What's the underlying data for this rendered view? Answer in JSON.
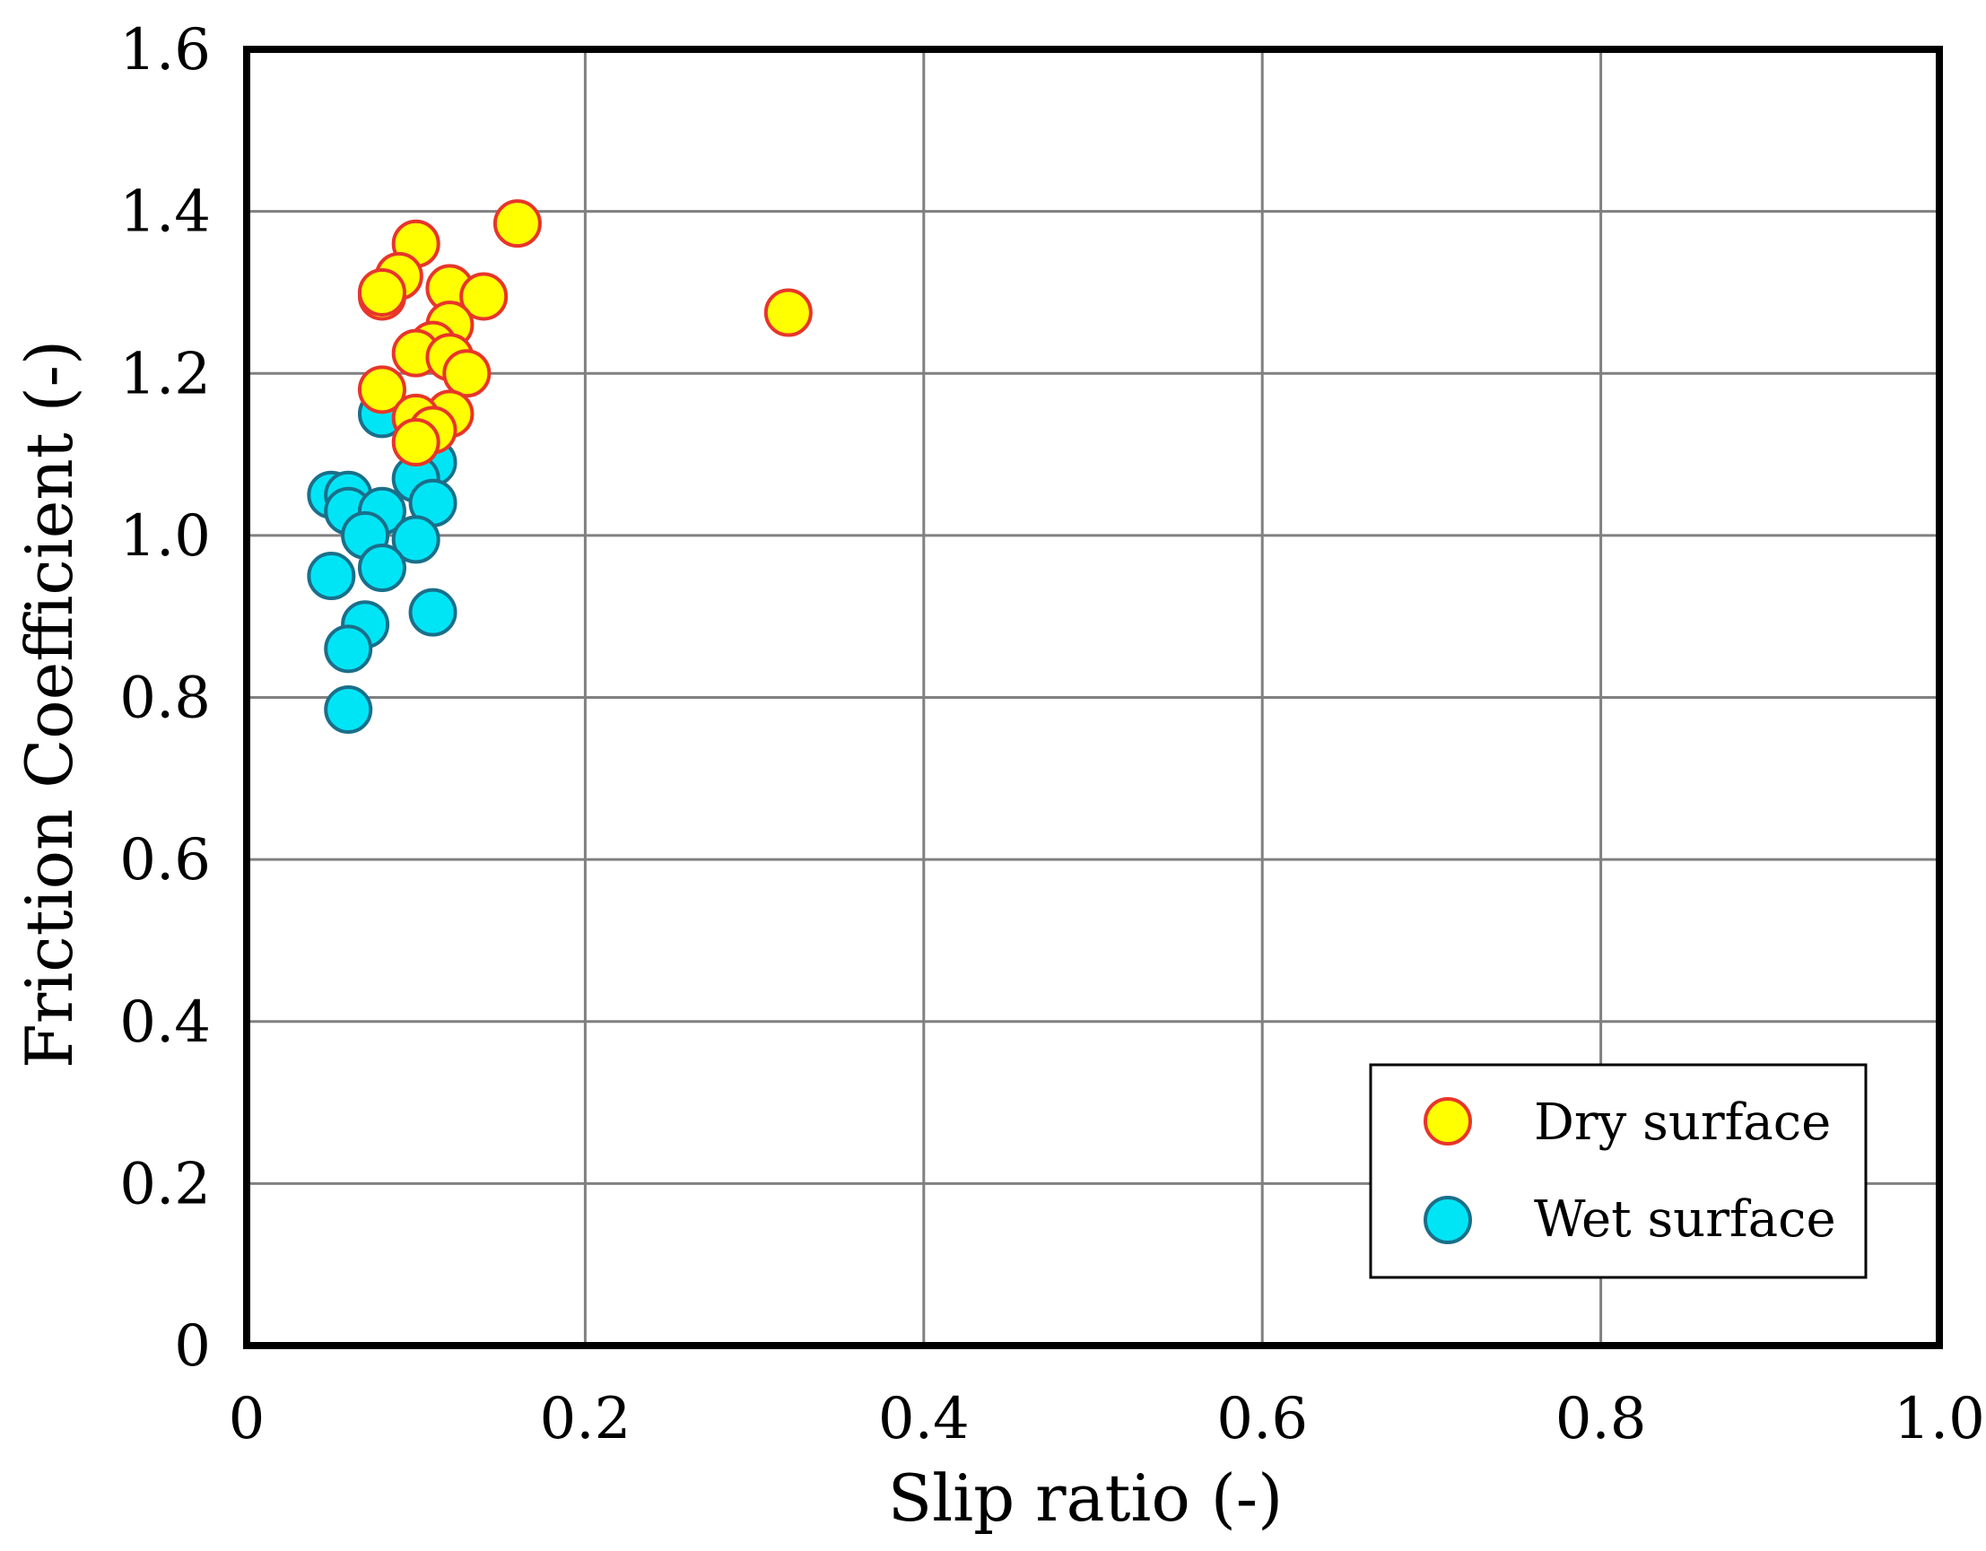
{
  "chart_data": {
    "type": "scatter",
    "title": "",
    "xlabel": "Slip ratio (-)",
    "ylabel": "Friction Coefficient (-)",
    "xlim": [
      0,
      1.0
    ],
    "ylim": [
      0,
      1.6
    ],
    "xticks": [
      0,
      0.2,
      0.4,
      0.6,
      0.8,
      1.0
    ],
    "xtick_labels": [
      "0",
      "0.2",
      "0.4",
      "0.6",
      "0.8",
      "1.0"
    ],
    "yticks": [
      0,
      0.2,
      0.4,
      0.6,
      0.8,
      1.0,
      1.2,
      1.4,
      1.6
    ],
    "ytick_labels": [
      "0",
      "0.2",
      "0.4",
      "0.6",
      "0.8",
      "1.0",
      "1.2",
      "1.4",
      "1.6"
    ],
    "grid": true,
    "legend_position": "bottom-right",
    "series": [
      {
        "name": "Wet surface",
        "fill": "#00e5f5",
        "stroke": "#1a6f8a",
        "points": [
          [
            0.08,
            1.15
          ],
          [
            0.11,
            1.09
          ],
          [
            0.1,
            1.07
          ],
          [
            0.05,
            1.05
          ],
          [
            0.06,
            1.05
          ],
          [
            0.06,
            1.03
          ],
          [
            0.08,
            1.03
          ],
          [
            0.11,
            1.04
          ],
          [
            0.07,
            1.0
          ],
          [
            0.1,
            0.995
          ],
          [
            0.05,
            0.95
          ],
          [
            0.08,
            0.96
          ],
          [
            0.11,
            0.905
          ],
          [
            0.07,
            0.89
          ],
          [
            0.06,
            0.86
          ],
          [
            0.06,
            0.785
          ]
        ]
      },
      {
        "name": "Dry surface",
        "fill": "#ffff00",
        "stroke": "#e8352a",
        "points": [
          [
            0.16,
            1.385
          ],
          [
            0.1,
            1.36
          ],
          [
            0.09,
            1.32
          ],
          [
            0.08,
            1.295
          ],
          [
            0.08,
            1.3
          ],
          [
            0.12,
            1.305
          ],
          [
            0.14,
            1.295
          ],
          [
            0.32,
            1.275
          ],
          [
            0.12,
            1.26
          ],
          [
            0.11,
            1.235
          ],
          [
            0.1,
            1.225
          ],
          [
            0.12,
            1.22
          ],
          [
            0.13,
            1.2
          ],
          [
            0.08,
            1.18
          ],
          [
            0.12,
            1.15
          ],
          [
            0.1,
            1.145
          ],
          [
            0.11,
            1.13
          ],
          [
            0.1,
            1.115
          ]
        ]
      }
    ]
  }
}
